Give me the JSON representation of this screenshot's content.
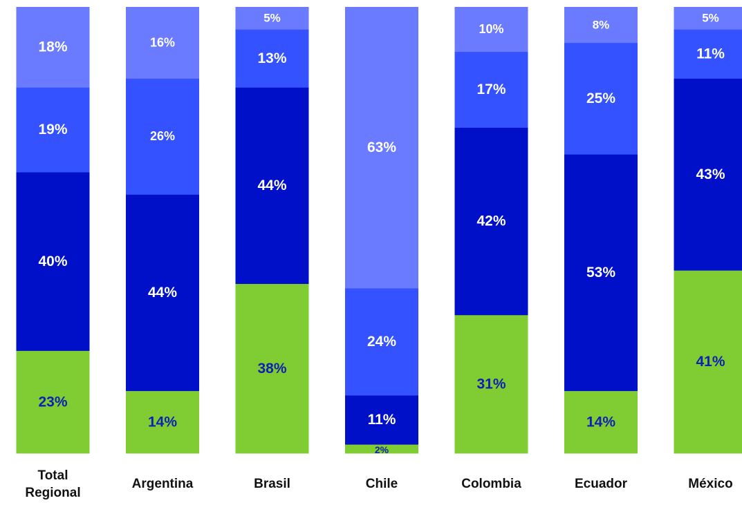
{
  "chart_data": {
    "type": "bar",
    "stacked": true,
    "normalized": true,
    "categories": [
      "Total Regional",
      "Argentina",
      "Brasil",
      "Chile",
      "Colombia",
      "Ecuador",
      "México"
    ],
    "series": [
      {
        "color": "#80cc33",
        "values": [
          23,
          14,
          38,
          2,
          31,
          14,
          41
        ],
        "labels": [
          "23%",
          "14%",
          "38%",
          "2%",
          "31%",
          "14%",
          "41%"
        ]
      },
      {
        "color": "#0010c8",
        "values": [
          40,
          44,
          44,
          11,
          42,
          53,
          43
        ],
        "labels": [
          "40%",
          "44%",
          "44%",
          "11%",
          "42%",
          "53%",
          "43%"
        ]
      },
      {
        "color": "#3452ff",
        "values": [
          19,
          26,
          13,
          24,
          17,
          25,
          11
        ],
        "labels": [
          "19%",
          "26%",
          "13%",
          "24%",
          "17%",
          "25%",
          "11%"
        ]
      },
      {
        "color": "#6b7bff",
        "values": [
          18,
          16,
          5,
          63,
          10,
          8,
          5
        ],
        "labels": [
          "18%",
          "16%",
          "5%",
          "63%",
          "10%",
          "8%",
          "5%"
        ]
      }
    ],
    "ylim": [
      0,
      100
    ],
    "grid": false,
    "title": "",
    "xlabel": "",
    "ylabel": ""
  },
  "colors": {
    "label_on_dark": "#ffffff",
    "label_on_green": "#1020b0"
  }
}
